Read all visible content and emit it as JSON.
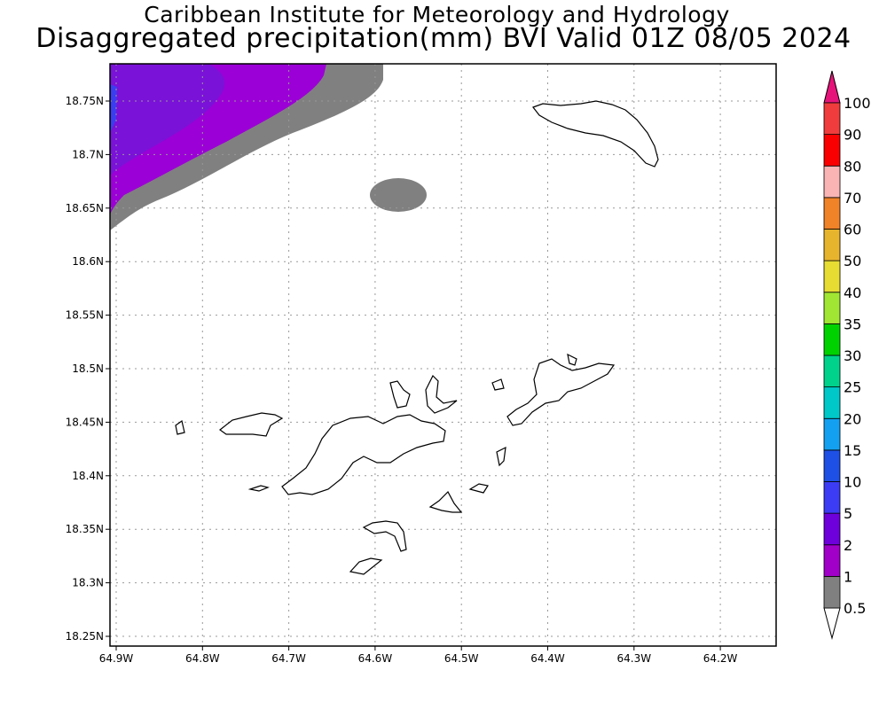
{
  "title_line1": "Caribbean Institute for Meteorology and Hydrology",
  "title_line2": "Disaggregated precipitation(mm) BVI Valid 01Z 08/05 2024",
  "map": {
    "lat_labels": [
      "18.75N",
      "18.7N",
      "18.65N",
      "18.6N",
      "18.55N",
      "18.5N",
      "18.45N",
      "18.4N",
      "18.35N",
      "18.3N",
      "18.25N"
    ],
    "lon_labels": [
      "64.9W",
      "64.8W",
      "64.7W",
      "64.6W",
      "64.5W",
      "64.4W",
      "64.3W",
      "64.2W"
    ],
    "colors": {
      "gray": "#808080",
      "violet": "#9b00d6",
      "purple": "#7a12d8",
      "blue": "#3b3df0"
    }
  },
  "colorbar": {
    "levels": [
      "0.5",
      "1",
      "2",
      "5",
      "10",
      "15",
      "20",
      "25",
      "30",
      "35",
      "40",
      "50",
      "60",
      "70",
      "80",
      "90",
      "100"
    ],
    "colors": [
      "#808080",
      "#a000c8",
      "#6e00dc",
      "#3c3cf5",
      "#1e50e6",
      "#14a0f0",
      "#00c8c8",
      "#00d28c",
      "#00d200",
      "#a0e632",
      "#e6dc32",
      "#e6b42d",
      "#f08228",
      "#fab4b4",
      "#fa0000",
      "#f03c3c",
      "#e6147a"
    ]
  }
}
